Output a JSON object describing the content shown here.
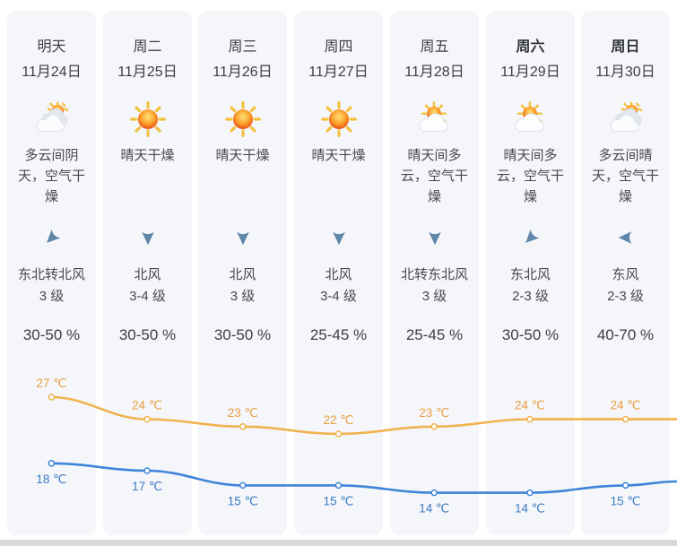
{
  "unit": "℃",
  "days": [
    {
      "week": "明天",
      "date": "11月24日",
      "icon": "cloudy",
      "desc": "多云间阴天，空气干燥",
      "wind_direction": "东北转北风",
      "wind_level": "3 级",
      "humidity": "30-50 %",
      "arrow_deg": 45,
      "emphasized": false,
      "high": 27,
      "low": 18
    },
    {
      "week": "周二",
      "date": "11月25日",
      "icon": "sunny",
      "desc": "晴天干燥",
      "wind_direction": "北风",
      "wind_level": "3-4 级",
      "humidity": "30-50 %",
      "arrow_deg": 0,
      "emphasized": false,
      "high": 24,
      "low": 17
    },
    {
      "week": "周三",
      "date": "11月26日",
      "icon": "sunny",
      "desc": "晴天干燥",
      "wind_direction": "北风",
      "wind_level": "3 级",
      "humidity": "30-50 %",
      "arrow_deg": 0,
      "emphasized": false,
      "high": 23,
      "low": 15
    },
    {
      "week": "周四",
      "date": "11月27日",
      "icon": "sunny",
      "desc": "晴天干燥",
      "wind_direction": "北风",
      "wind_level": "3-4 级",
      "humidity": "25-45 %",
      "arrow_deg": 0,
      "emphasized": false,
      "high": 22,
      "low": 15
    },
    {
      "week": "周五",
      "date": "11月28日",
      "icon": "sun-cloud",
      "desc": "晴天间多云，空气干燥",
      "wind_direction": "北转东北风",
      "wind_level": "3 级",
      "humidity": "25-45 %",
      "arrow_deg": 0,
      "emphasized": false,
      "high": 23,
      "low": 14
    },
    {
      "week": "周六",
      "date": "11月29日",
      "icon": "sun-cloud",
      "desc": "晴天间多云，空气干燥",
      "wind_direction": "东北风",
      "wind_level": "2-3 级",
      "humidity": "30-50 %",
      "arrow_deg": 45,
      "emphasized": true,
      "high": 24,
      "low": 14
    },
    {
      "week": "周日",
      "date": "11月30日",
      "icon": "cloudy",
      "desc": "多云间晴天，空气干燥",
      "wind_direction": "东风",
      "wind_level": "2-3 级",
      "humidity": "40-70 %",
      "arrow_deg": 90,
      "emphasized": true,
      "high": 24,
      "low": 15
    }
  ],
  "chart_data": {
    "type": "line",
    "categories": [
      "明天",
      "周二",
      "周三",
      "周四",
      "周五",
      "周六",
      "周日"
    ],
    "unit": "℃",
    "ylim": [
      10,
      30
    ],
    "grid": false,
    "legend": "none",
    "series": [
      {
        "name": "high",
        "label_position": "above",
        "color": "#f0b34f",
        "label_color": "#e99e40",
        "values": [
          27,
          24,
          23,
          22,
          23,
          24,
          24
        ]
      },
      {
        "name": "low",
        "label_position": "below",
        "color": "#3e84d7",
        "label_color": "#3a79c3",
        "values": [
          18,
          17,
          15,
          15,
          14,
          14,
          15
        ]
      }
    ]
  },
  "colors": {
    "card_bg": "#f5f6fa",
    "high_line": "#f0b34f",
    "low_line": "#3e84d7",
    "wind_arrow": "#5e86a8",
    "text": "#3b3e45"
  }
}
